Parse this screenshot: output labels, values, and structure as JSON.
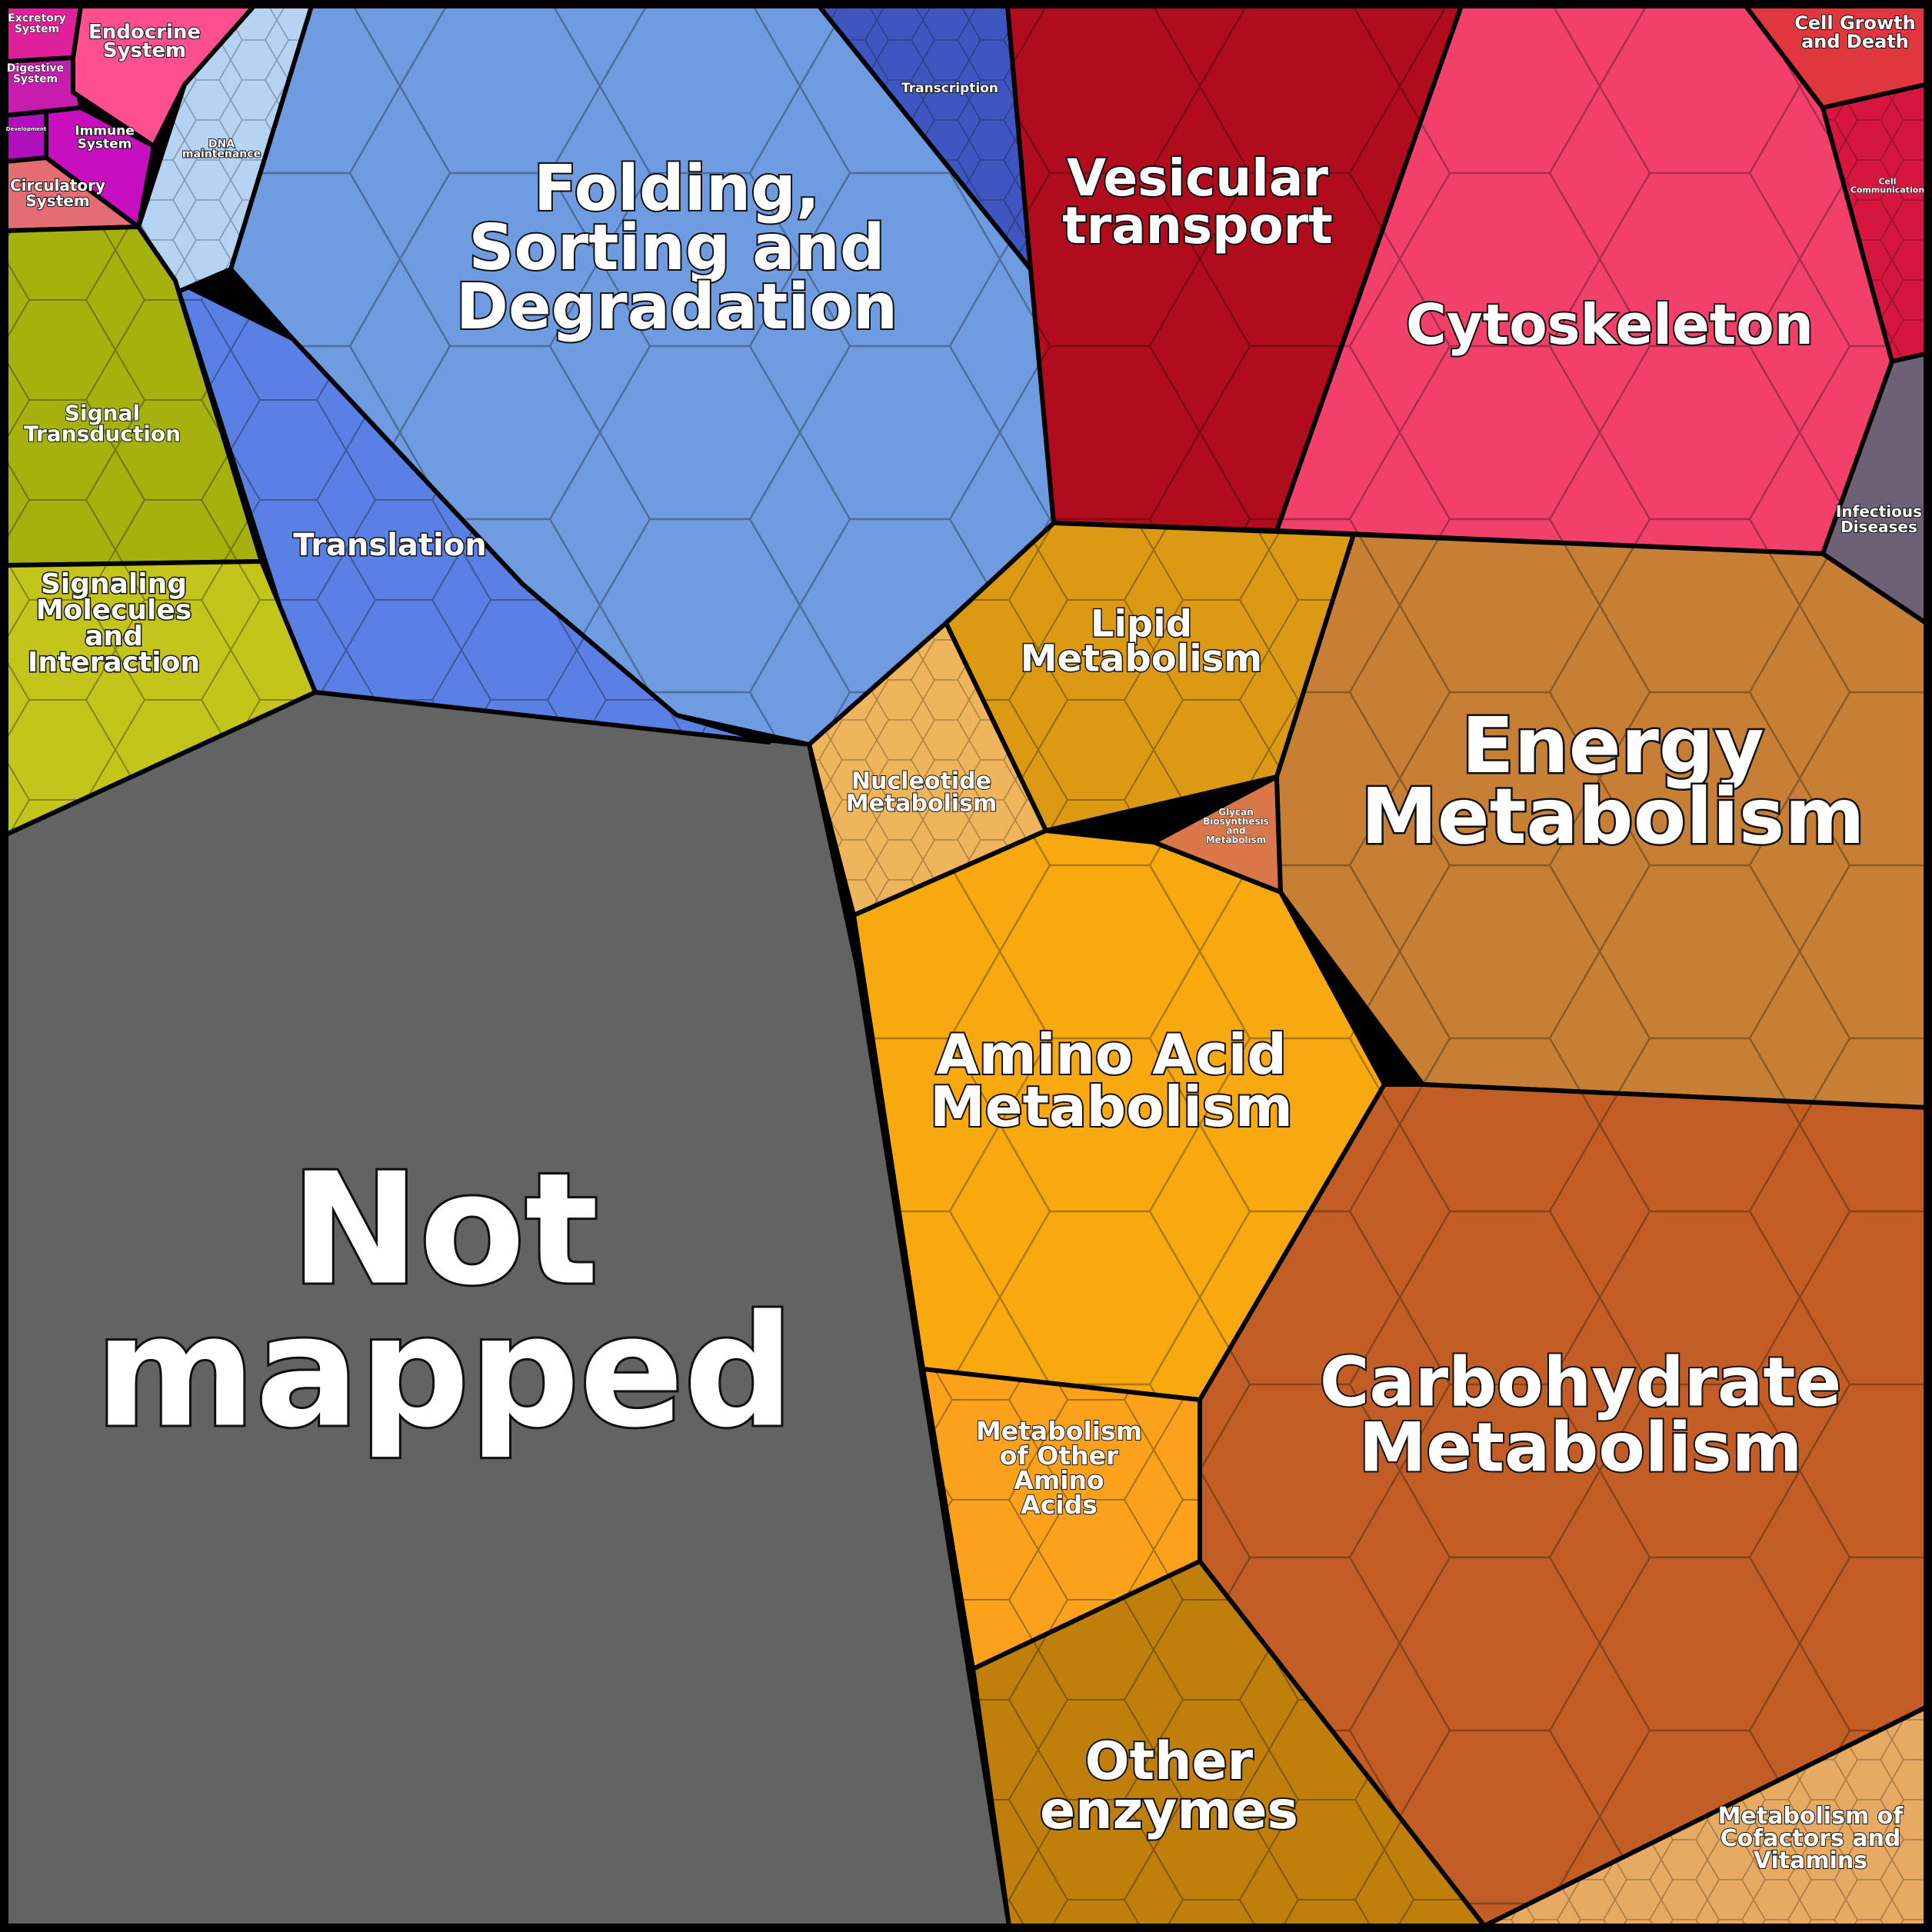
{
  "diagram": {
    "type": "voronoi-treemap",
    "categories": [
      {
        "id": "not-mapped",
        "label_lines": [
          "Not",
          "mapped"
        ],
        "color": "#636363"
      },
      {
        "id": "folding",
        "label_lines": [
          "Folding,",
          "Sorting and",
          "Degradation"
        ],
        "color": "#6f9ce0"
      },
      {
        "id": "translation",
        "label_lines": [
          "Translation"
        ],
        "color": "#5a80e6"
      },
      {
        "id": "transcription",
        "label_lines": [
          "Transcription"
        ],
        "color": "#3f55c0"
      },
      {
        "id": "dna-maintenance",
        "label_lines": [
          "DNA",
          "maintenance"
        ],
        "color": "#b7d3f4"
      },
      {
        "id": "vesicular",
        "label_lines": [
          "Vesicular",
          "transport"
        ],
        "color": "#b10c1d"
      },
      {
        "id": "cytoskeleton",
        "label_lines": [
          "Cytoskeleton"
        ],
        "color": "#f2406a"
      },
      {
        "id": "cell-growth",
        "label_lines": [
          "Cell Growth",
          "and Death"
        ],
        "color": "#e0363e"
      },
      {
        "id": "cell-communication",
        "label_lines": [
          "Cell",
          "Communication"
        ],
        "color": "#d5173f"
      },
      {
        "id": "infectious",
        "label_lines": [
          "Infectious",
          "Diseases"
        ],
        "color": "#6f6175"
      },
      {
        "id": "endocrine",
        "label_lines": [
          "Endocrine",
          "System"
        ],
        "color": "#ff4f8f"
      },
      {
        "id": "excretory",
        "label_lines": [
          "Excretory",
          "System"
        ],
        "color": "#e0209b"
      },
      {
        "id": "digestive",
        "label_lines": [
          "Digestive",
          "System"
        ],
        "color": "#c61dae"
      },
      {
        "id": "immune",
        "label_lines": [
          "Immune",
          "System"
        ],
        "color": "#c80fc0"
      },
      {
        "id": "development",
        "label_lines": [
          "Development"
        ],
        "color": "#b010bc"
      },
      {
        "id": "circulatory",
        "label_lines": [
          "Circulatory",
          "System"
        ],
        "color": "#e36d72"
      },
      {
        "id": "signal-transduction",
        "label_lines": [
          "Signal",
          "Transduction"
        ],
        "color": "#a5b10c"
      },
      {
        "id": "signaling-molecules",
        "label_lines": [
          "Signaling",
          "Molecules",
          "and",
          "Interaction"
        ],
        "color": "#c3c51a"
      },
      {
        "id": "lipid",
        "label_lines": [
          "Lipid",
          "Metabolism"
        ],
        "color": "#dc9a14"
      },
      {
        "id": "nucleotide",
        "label_lines": [
          "Nucleotide",
          "Metabolism"
        ],
        "color": "#eeb55c"
      },
      {
        "id": "glycan",
        "label_lines": [
          "Glycan",
          "Biosynthesis",
          "and",
          "Metabolism"
        ],
        "color": "#d9774a"
      },
      {
        "id": "energy",
        "label_lines": [
          "Energy",
          "Metabolism"
        ],
        "color": "#c67f34"
      },
      {
        "id": "amino-acid",
        "label_lines": [
          "Amino Acid",
          "Metabolism"
        ],
        "color": "#f8a90f"
      },
      {
        "id": "other-amino",
        "label_lines": [
          "Metabolism",
          "of Other",
          "Amino",
          "Acids"
        ],
        "color": "#fba11c"
      },
      {
        "id": "carbohydrate",
        "label_lines": [
          "Carbohydrate",
          "Metabolism"
        ],
        "color": "#c25e25"
      },
      {
        "id": "other-enzymes",
        "label_lines": [
          "Other",
          "enzymes"
        ],
        "color": "#bf7f0a"
      },
      {
        "id": "cofactors",
        "label_lines": [
          "Metabolism of",
          "Cofactors and",
          "Vitamins"
        ],
        "color": "#e6aa62"
      }
    ]
  }
}
